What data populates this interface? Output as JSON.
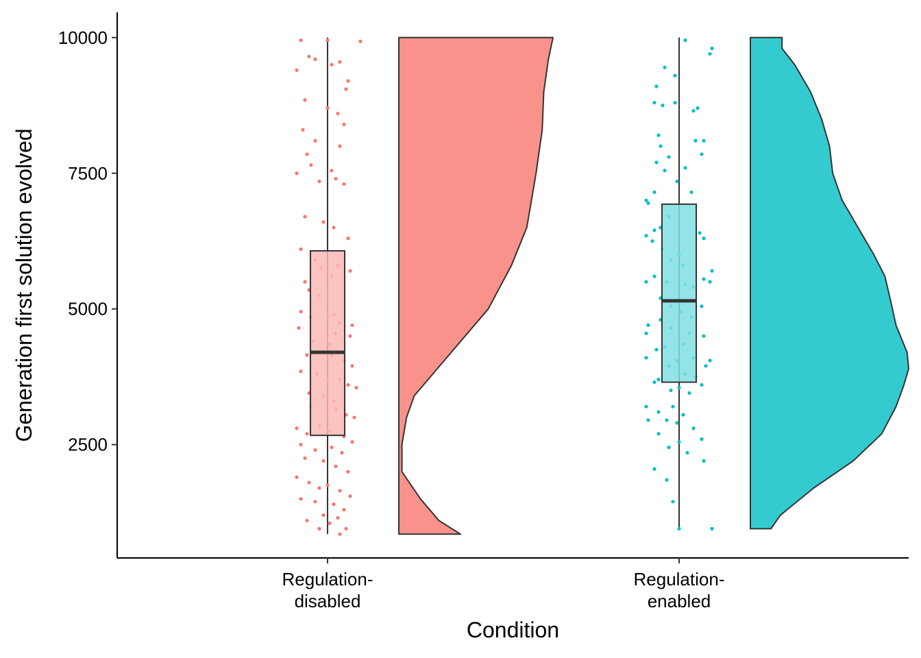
{
  "chart_data": {
    "type": "raincloud",
    "title": "",
    "xlabel": "Condition",
    "ylabel": "Generation first solution evolved",
    "ylim": [
      550,
      10450
    ],
    "y_ticks": [
      2500,
      5000,
      7500,
      10000
    ],
    "y_tick_labels": [
      "2500",
      "5000",
      "7500",
      "10000"
    ],
    "categories": [
      {
        "label_lines": [
          "Regulation-",
          "disabled"
        ],
        "color": "#f8766d",
        "box_fill": "#fbbab6",
        "density_fill": "#f9928b",
        "box": {
          "min": 850,
          "q1": 2670,
          "median": 4200,
          "q3": 6070,
          "max": 10000
        },
        "density": {
          "max_width": 225,
          "profile": [
            [
              850,
              0.4
            ],
            [
              1100,
              0.26
            ],
            [
              1500,
              0.14
            ],
            [
              2000,
              0.02
            ],
            [
              2500,
              0.02
            ],
            [
              3000,
              0.05
            ],
            [
              3400,
              0.1
            ],
            [
              3800,
              0.22
            ],
            [
              4300,
              0.37
            ],
            [
              5000,
              0.58
            ],
            [
              5800,
              0.73
            ],
            [
              6500,
              0.83
            ],
            [
              7500,
              0.89
            ],
            [
              8300,
              0.93
            ],
            [
              9000,
              0.94
            ],
            [
              9600,
              0.97
            ],
            [
              10000,
              1.0
            ]
          ]
        },
        "points": [
          [
            -65,
            9950
          ],
          [
            0,
            9950
          ],
          [
            80,
            9930
          ],
          [
            -30,
            9600
          ],
          [
            -45,
            9650
          ],
          [
            10,
            9500
          ],
          [
            30,
            9550
          ],
          [
            50,
            9200
          ],
          [
            -75,
            9400
          ],
          [
            45,
            9050
          ],
          [
            -55,
            8850
          ],
          [
            0,
            8700
          ],
          [
            25,
            8600
          ],
          [
            40,
            8400
          ],
          [
            -60,
            8300
          ],
          [
            -30,
            8100
          ],
          [
            30,
            8000
          ],
          [
            -50,
            7850
          ],
          [
            -75,
            7500
          ],
          [
            -40,
            7650
          ],
          [
            10,
            7550
          ],
          [
            -20,
            7350
          ],
          [
            20,
            7400
          ],
          [
            40,
            7300
          ],
          [
            -55,
            6700
          ],
          [
            -10,
            6600
          ],
          [
            15,
            6500
          ],
          [
            50,
            6300
          ],
          [
            -65,
            6100
          ],
          [
            -30,
            5900
          ],
          [
            -15,
            5750
          ],
          [
            -55,
            5500
          ],
          [
            25,
            5800
          ],
          [
            55,
            5700
          ],
          [
            10,
            5600
          ],
          [
            -45,
            5350
          ],
          [
            -20,
            5250
          ],
          [
            -65,
            4950
          ],
          [
            -40,
            4850
          ],
          [
            0,
            4850
          ],
          [
            30,
            4750
          ],
          [
            15,
            4900
          ],
          [
            60,
            4700
          ],
          [
            -70,
            4650
          ],
          [
            -35,
            4400
          ],
          [
            5,
            4350
          ],
          [
            20,
            4550
          ],
          [
            55,
            4500
          ],
          [
            -50,
            4150
          ],
          [
            -15,
            4200
          ],
          [
            10,
            4150
          ],
          [
            40,
            4050
          ],
          [
            60,
            3950
          ],
          [
            -65,
            3850
          ],
          [
            -25,
            3800
          ],
          [
            0,
            3700
          ],
          [
            30,
            3700
          ],
          [
            50,
            3600
          ],
          [
            70,
            3550
          ],
          [
            -45,
            3450
          ],
          [
            -10,
            3400
          ],
          [
            15,
            3300
          ],
          [
            -40,
            3200
          ],
          [
            20,
            3150
          ],
          [
            45,
            3050
          ],
          [
            65,
            3000
          ],
          [
            -75,
            2800
          ],
          [
            -50,
            2700
          ],
          [
            -20,
            2850
          ],
          [
            5,
            2750
          ],
          [
            40,
            2650
          ],
          [
            60,
            2550
          ],
          [
            -65,
            2500
          ],
          [
            -30,
            2400
          ],
          [
            10,
            2450
          ],
          [
            35,
            2350
          ],
          [
            -55,
            2250
          ],
          [
            -10,
            2200
          ],
          [
            20,
            2100
          ],
          [
            50,
            2000
          ],
          [
            -75,
            1900
          ],
          [
            -45,
            1800
          ],
          [
            -20,
            1700
          ],
          [
            0,
            1750
          ],
          [
            30,
            1650
          ],
          [
            55,
            1550
          ],
          [
            -65,
            1500
          ],
          [
            -30,
            1450
          ],
          [
            15,
            1400
          ],
          [
            40,
            1300
          ],
          [
            -10,
            1200
          ],
          [
            25,
            1150
          ],
          [
            -50,
            1100
          ],
          [
            5,
            1050
          ],
          [
            -20,
            950
          ],
          [
            45,
            950
          ],
          [
            30,
            850
          ]
        ]
      },
      {
        "label_lines": [
          "Regulation-",
          "enabled"
        ],
        "color": "#00bfc4",
        "box_fill": "#80dfe2",
        "density_fill": "#33cbcf",
        "box": {
          "min": 950,
          "q1": 3650,
          "median": 5150,
          "q3": 6930,
          "max": 10000
        },
        "density": {
          "max_width": 231,
          "profile": [
            [
              950,
              0.13
            ],
            [
              1200,
              0.19
            ],
            [
              1700,
              0.4
            ],
            [
              2200,
              0.65
            ],
            [
              2700,
              0.83
            ],
            [
              3200,
              0.92
            ],
            [
              3600,
              0.97
            ],
            [
              3900,
              1.0
            ],
            [
              4200,
              0.99
            ],
            [
              4700,
              0.92
            ],
            [
              5100,
              0.89
            ],
            [
              5600,
              0.85
            ],
            [
              6000,
              0.78
            ],
            [
              6500,
              0.68
            ],
            [
              7000,
              0.58
            ],
            [
              7500,
              0.52
            ],
            [
              8000,
              0.5
            ],
            [
              8500,
              0.45
            ],
            [
              9000,
              0.38
            ],
            [
              9500,
              0.28
            ],
            [
              9800,
              0.2
            ],
            [
              10000,
              0.2
            ]
          ]
        },
        "points": [
          [
            15,
            9950
          ],
          [
            80,
            9800
          ],
          [
            75,
            9700
          ],
          [
            -35,
            9450
          ],
          [
            -55,
            9100
          ],
          [
            -10,
            9300
          ],
          [
            -60,
            8800
          ],
          [
            -40,
            8750
          ],
          [
            -10,
            8800
          ],
          [
            45,
            8700
          ],
          [
            35,
            8650
          ],
          [
            -50,
            8200
          ],
          [
            60,
            8100
          ],
          [
            40,
            8100
          ],
          [
            55,
            7850
          ],
          [
            -45,
            8000
          ],
          [
            -25,
            7800
          ],
          [
            -55,
            7700
          ],
          [
            -35,
            7550
          ],
          [
            15,
            7600
          ],
          [
            -5,
            7350
          ],
          [
            30,
            7150
          ],
          [
            -60,
            7150
          ],
          [
            -80,
            7000
          ],
          [
            -75,
            6950
          ],
          [
            -25,
            6700
          ],
          [
            -45,
            6500
          ],
          [
            -60,
            6450
          ],
          [
            -80,
            6350
          ],
          [
            -65,
            6250
          ],
          [
            -40,
            6100
          ],
          [
            0,
            6000
          ],
          [
            50,
            6400
          ],
          [
            60,
            6300
          ],
          [
            -20,
            5900
          ],
          [
            10,
            5800
          ],
          [
            -80,
            5500
          ],
          [
            -60,
            5600
          ],
          [
            -30,
            5500
          ],
          [
            15,
            5450
          ],
          [
            35,
            5400
          ],
          [
            60,
            5550
          ],
          [
            80,
            5700
          ],
          [
            75,
            5500
          ],
          [
            -45,
            5200
          ],
          [
            -20,
            5050
          ],
          [
            5,
            4950
          ],
          [
            30,
            4850
          ],
          [
            55,
            5050
          ],
          [
            -75,
            4700
          ],
          [
            -80,
            4550
          ],
          [
            -45,
            4800
          ],
          [
            -20,
            4650
          ],
          [
            25,
            4550
          ],
          [
            60,
            4500
          ],
          [
            10,
            4350
          ],
          [
            -55,
            4250
          ],
          [
            -35,
            4300
          ],
          [
            -80,
            4100
          ],
          [
            35,
            4100
          ],
          [
            75,
            4050
          ],
          [
            65,
            3950
          ],
          [
            -5,
            4050
          ],
          [
            -25,
            3950
          ],
          [
            15,
            3800
          ],
          [
            40,
            3750
          ],
          [
            55,
            3600
          ],
          [
            -50,
            3700
          ],
          [
            -60,
            3650
          ],
          [
            -20,
            3500
          ],
          [
            0,
            3550
          ],
          [
            25,
            3450
          ],
          [
            -80,
            3200
          ],
          [
            -50,
            3100
          ],
          [
            -15,
            3200
          ],
          [
            10,
            3050
          ],
          [
            -75,
            2950
          ],
          [
            -30,
            2950
          ],
          [
            -5,
            2900
          ],
          [
            35,
            2800
          ],
          [
            55,
            2600
          ],
          [
            -50,
            2700
          ],
          [
            0,
            2550
          ],
          [
            -25,
            2450
          ],
          [
            20,
            2350
          ],
          [
            60,
            2200
          ],
          [
            -60,
            2050
          ],
          [
            -30,
            1850
          ],
          [
            -15,
            1450
          ],
          [
            0,
            950
          ],
          [
            80,
            950
          ]
        ]
      }
    ],
    "points_are_jitter": true
  }
}
